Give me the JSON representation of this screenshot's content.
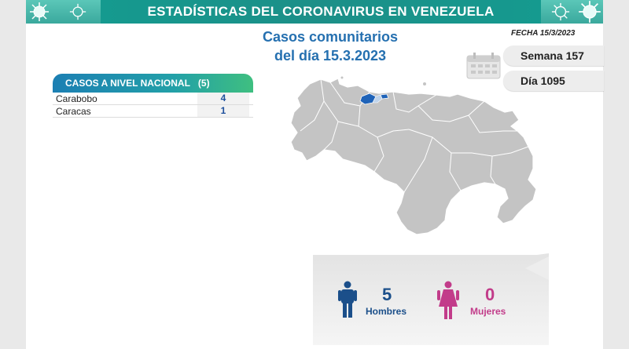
{
  "header": {
    "title": "ESTADÍSTICAS DEL CORONAVIRUS EN VENEZUELA"
  },
  "subtitle": {
    "line1": "Casos comunitarios",
    "line2": "del día 15.3.2023"
  },
  "date": {
    "label": "FECHA 15/3/2023"
  },
  "counters": {
    "semana": "Semana 157",
    "dia": "Día 1095"
  },
  "cases": {
    "title": "CASOS A NIVEL NACIONAL",
    "total": "(5)",
    "rows": [
      {
        "name": "Carabobo",
        "value": "4"
      },
      {
        "name": "Caracas",
        "value": "1"
      }
    ]
  },
  "gender": {
    "men": {
      "count": "5",
      "label": "Hombres"
    },
    "women": {
      "count": "0",
      "label": "Mujeres"
    }
  },
  "icons": [
    "virus-icon",
    "calendar-icon",
    "man-icon",
    "woman-icon"
  ],
  "colors": {
    "header_bg": "#159a8f",
    "subtitle_blue": "#2570b0",
    "men_blue": "#1b4f8a",
    "women_pink": "#c23c8a",
    "map_gray": "#c4c4c4",
    "highlight_blue": "#1f63b8"
  }
}
